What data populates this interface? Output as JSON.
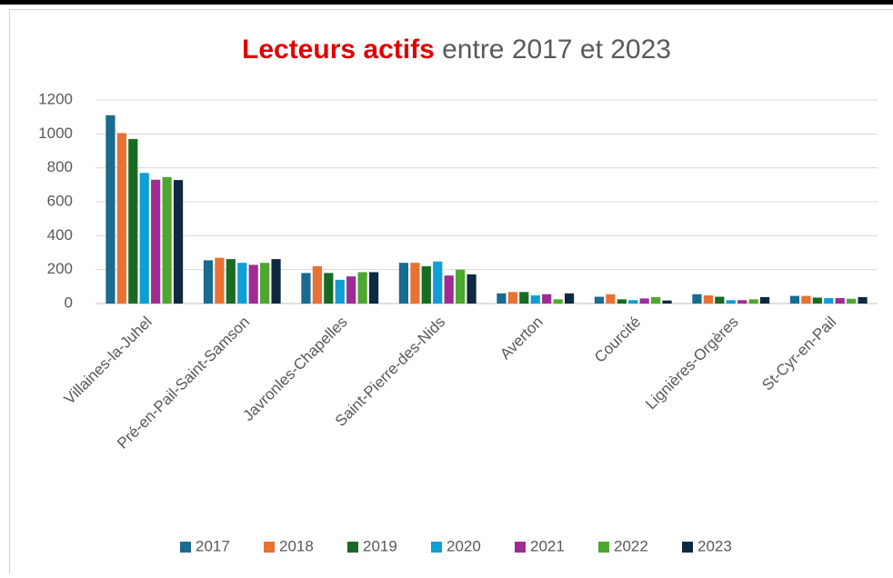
{
  "chart_data": {
    "type": "bar",
    "title": {
      "highlight": "Lecteurs actifs",
      "rest": "entre 2017 et 2023"
    },
    "categories": [
      "Villaines-la-Juhel",
      "Pré-en-Pail-Saint-Samson",
      "Javronles-Chapelles",
      "Saint-Pierre-des-Nids",
      "Averton",
      "Courcité",
      "Lignières-Orgères",
      "St-Cyr-en-Pail"
    ],
    "series": [
      {
        "name": "2017",
        "color": "#196b8f",
        "values": [
          1110,
          255,
          180,
          240,
          60,
          40,
          55,
          45
        ]
      },
      {
        "name": "2018",
        "color": "#e97132",
        "values": [
          1005,
          270,
          220,
          240,
          68,
          55,
          48,
          45
        ]
      },
      {
        "name": "2019",
        "color": "#196b24",
        "values": [
          970,
          262,
          180,
          220,
          68,
          25,
          40,
          35
        ]
      },
      {
        "name": "2020",
        "color": "#0f9ed5",
        "values": [
          770,
          240,
          140,
          248,
          48,
          20,
          20,
          32
        ]
      },
      {
        "name": "2021",
        "color": "#a02b93",
        "values": [
          730,
          228,
          160,
          165,
          55,
          30,
          20,
          32
        ]
      },
      {
        "name": "2022",
        "color": "#4ea72e",
        "values": [
          745,
          240,
          185,
          200,
          25,
          38,
          25,
          28
        ]
      },
      {
        "name": "2023",
        "color": "#0e2841",
        "values": [
          728,
          262,
          185,
          172,
          60,
          18,
          38,
          38
        ]
      }
    ],
    "ylim": [
      0,
      1200
    ],
    "yticks": [
      0,
      200,
      400,
      600,
      800,
      1000,
      1200
    ],
    "grid": true,
    "legend": "bottom"
  }
}
